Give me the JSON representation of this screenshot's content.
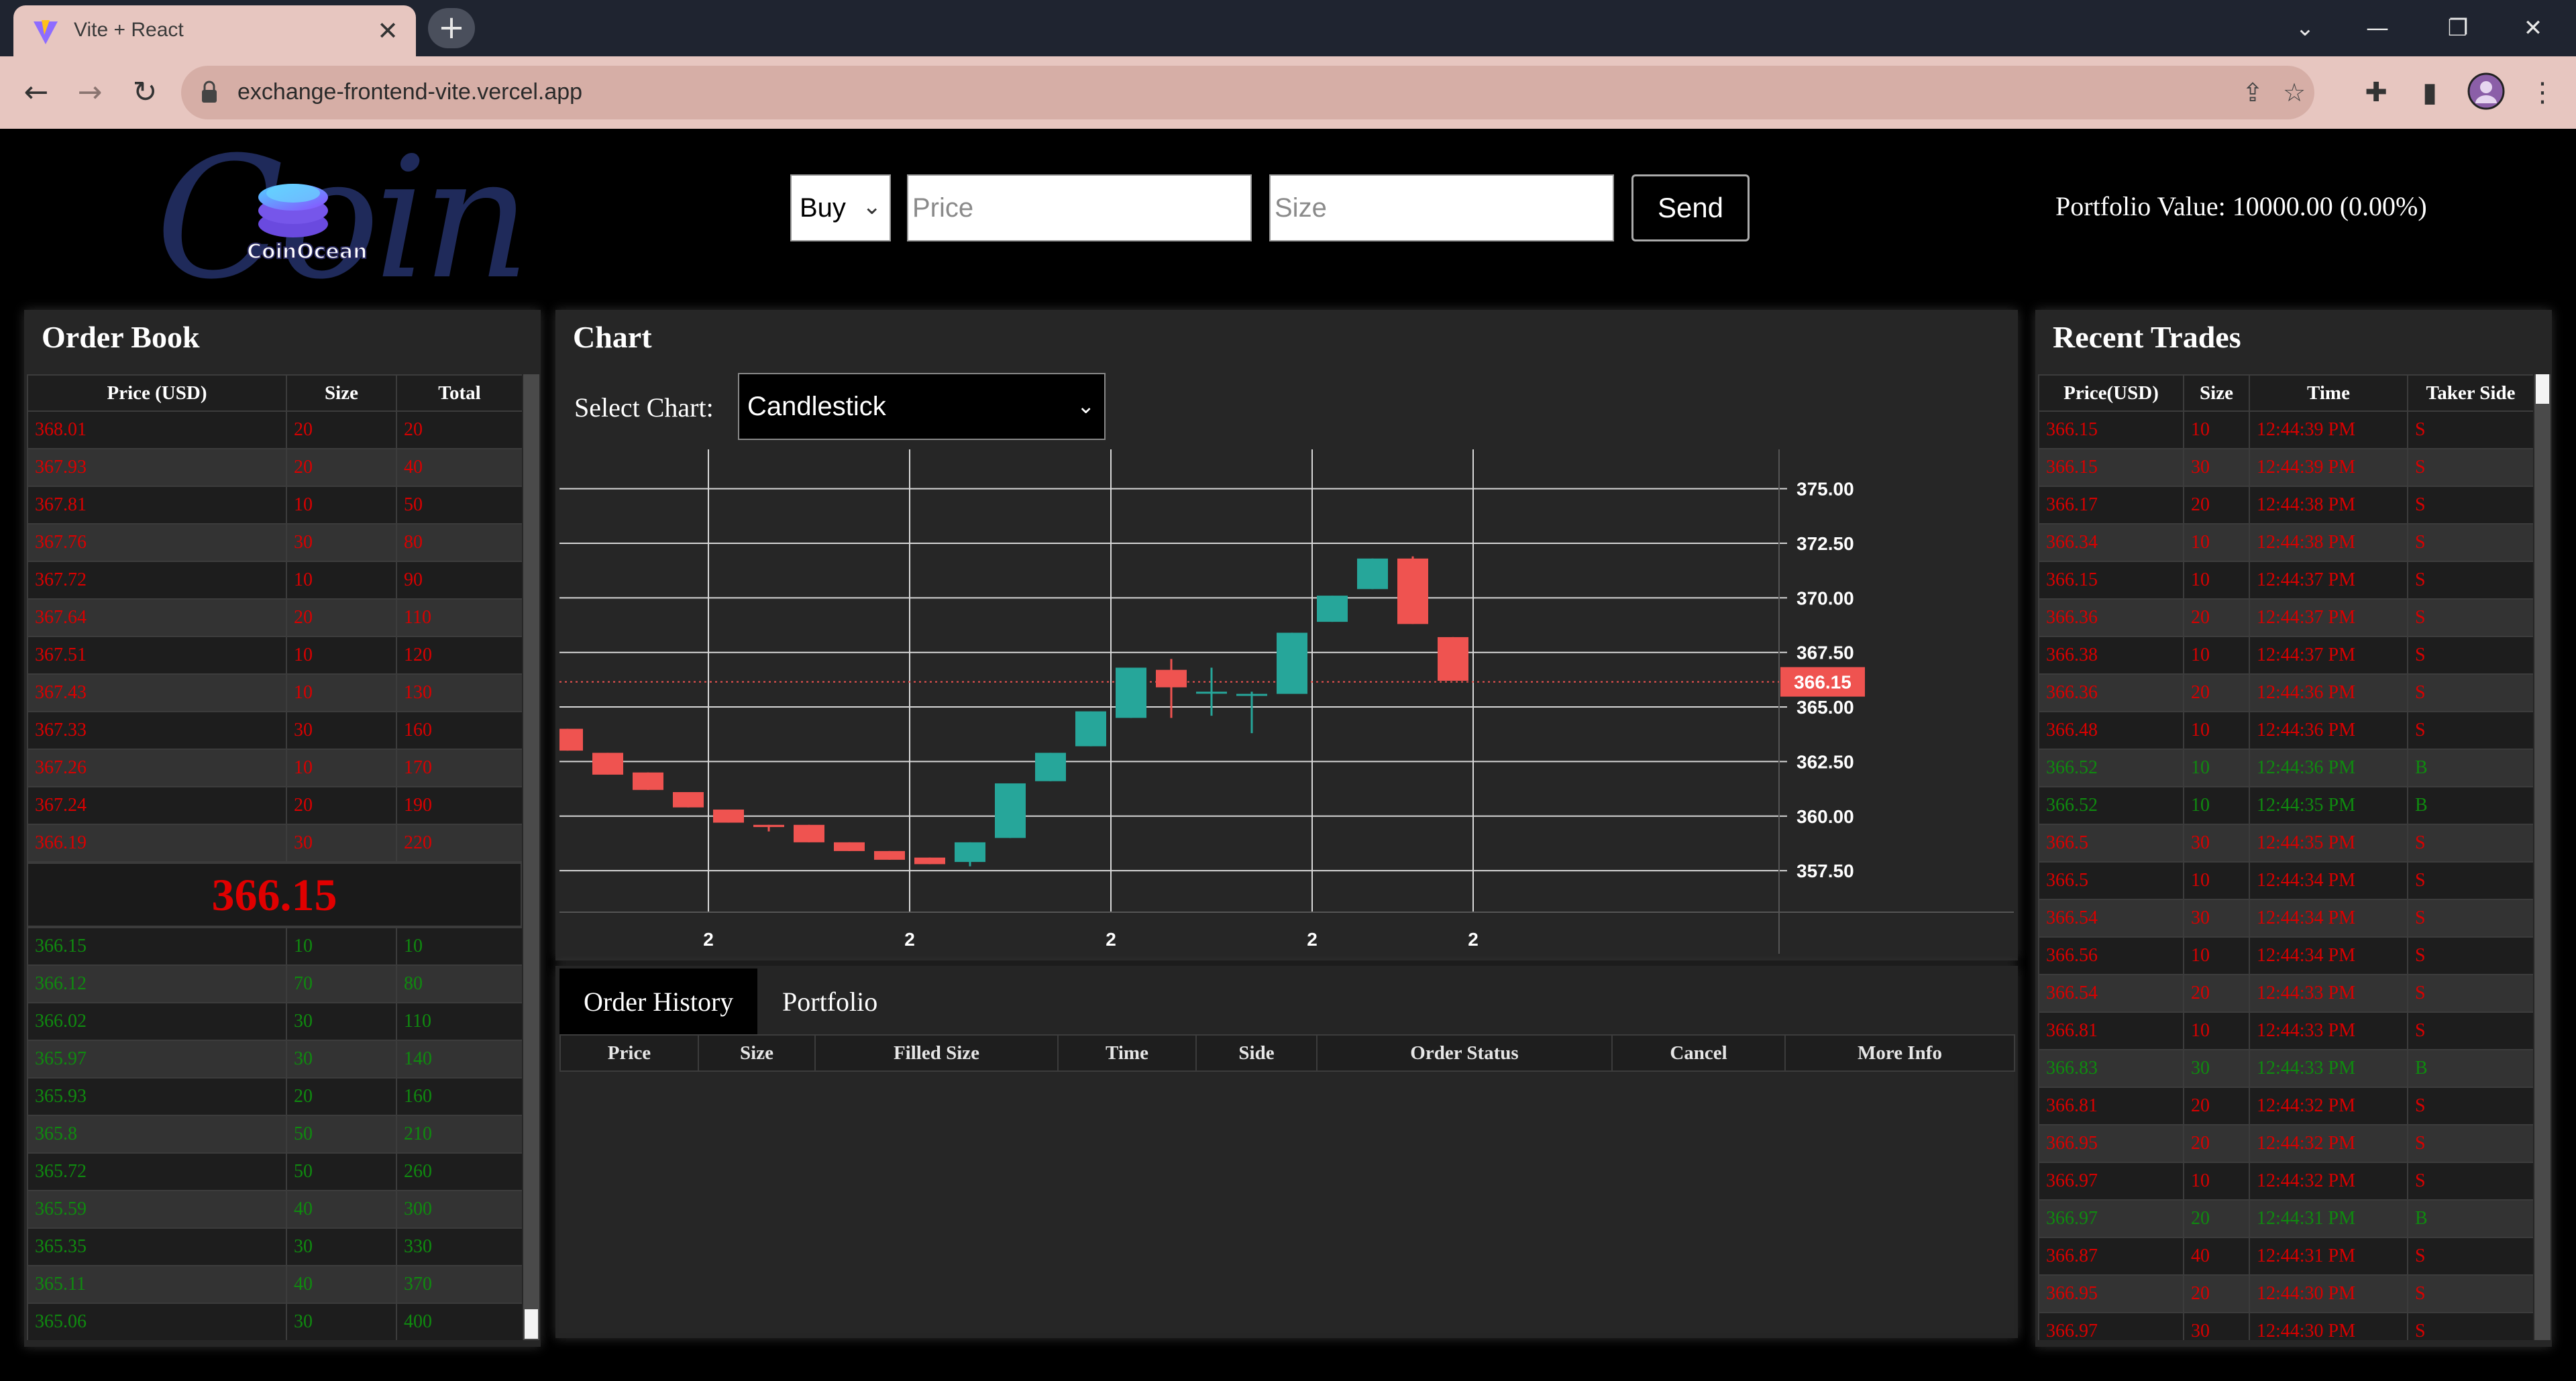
{
  "browser": {
    "tab_title": "Vite + React",
    "tab_close": "✕",
    "new_tab": "+",
    "url": "exchange-frontend-vite.vercel.app",
    "controls": {
      "collapse": "⌄",
      "minimize": "—",
      "restore": "❐",
      "close": "✕"
    },
    "nav": {
      "back": "←",
      "forward": "→",
      "reload": "↻"
    },
    "icons": {
      "share": "⇪",
      "star": "☆",
      "extensions": "✚",
      "sidepanel": "▮",
      "menu": "⋮"
    }
  },
  "header": {
    "logo_script": "Coin",
    "logo_text": "CoinOcean",
    "side_select": "Buy",
    "price_placeholder": "Price",
    "size_placeholder": "Size",
    "send_label": "Send",
    "portfolio_value": "Portfolio Value: 10000.00 (0.00%)"
  },
  "order_book": {
    "title": "Order Book",
    "columns": [
      "Price (USD)",
      "Size",
      "Total"
    ],
    "asks": [
      [
        "368.01",
        "20",
        "20"
      ],
      [
        "367.93",
        "20",
        "40"
      ],
      [
        "367.81",
        "10",
        "50"
      ],
      [
        "367.76",
        "30",
        "80"
      ],
      [
        "367.72",
        "10",
        "90"
      ],
      [
        "367.64",
        "20",
        "110"
      ],
      [
        "367.51",
        "10",
        "120"
      ],
      [
        "367.43",
        "10",
        "130"
      ],
      [
        "367.33",
        "30",
        "160"
      ],
      [
        "367.26",
        "10",
        "170"
      ],
      [
        "367.24",
        "20",
        "190"
      ],
      [
        "366.19",
        "30",
        "220"
      ]
    ],
    "mid_price": "366.15",
    "bids": [
      [
        "366.15",
        "10",
        "10"
      ],
      [
        "366.12",
        "70",
        "80"
      ],
      [
        "366.02",
        "30",
        "110"
      ],
      [
        "365.97",
        "30",
        "140"
      ],
      [
        "365.93",
        "20",
        "160"
      ],
      [
        "365.8",
        "50",
        "210"
      ],
      [
        "365.72",
        "50",
        "260"
      ],
      [
        "365.59",
        "40",
        "300"
      ],
      [
        "365.35",
        "30",
        "330"
      ],
      [
        "365.11",
        "40",
        "370"
      ],
      [
        "365.06",
        "30",
        "400"
      ]
    ]
  },
  "chart": {
    "title": "Chart",
    "select_label": "Select Chart:",
    "select_value": "Candlestick",
    "chart_data": {
      "type": "candlestick",
      "y_ticks": [
        "375.00",
        "372.50",
        "370.00",
        "367.50",
        "365.00",
        "362.50",
        "360.00",
        "357.50"
      ],
      "ylim": [
        355.6,
        376.8
      ],
      "x_tick_labels": [
        "2",
        "2",
        "2",
        "2",
        "2"
      ],
      "last_price": 366.15,
      "last_price_label": "366.15",
      "up_color": "#26a69a",
      "down_color": "#ef5350",
      "candles": [
        {
          "o": 364.0,
          "h": 364.0,
          "c": 363.0,
          "l": 363.0
        },
        {
          "o": 362.9,
          "h": 362.9,
          "c": 361.9,
          "l": 361.9
        },
        {
          "o": 362.0,
          "h": 362.0,
          "c": 361.2,
          "l": 361.2
        },
        {
          "o": 361.1,
          "h": 361.1,
          "c": 360.4,
          "l": 360.4
        },
        {
          "o": 360.3,
          "h": 360.3,
          "c": 359.7,
          "l": 359.7
        },
        {
          "o": 359.6,
          "h": 359.6,
          "c": 359.5,
          "l": 359.3
        },
        {
          "o": 359.6,
          "h": 359.6,
          "c": 358.8,
          "l": 358.8
        },
        {
          "o": 358.8,
          "h": 358.8,
          "c": 358.4,
          "l": 358.4
        },
        {
          "o": 358.4,
          "h": 358.4,
          "c": 358.0,
          "l": 358.0
        },
        {
          "o": 358.1,
          "h": 358.1,
          "c": 357.8,
          "l": 357.8
        },
        {
          "o": 357.9,
          "h": 358.8,
          "c": 358.8,
          "l": 357.7
        },
        {
          "o": 359.0,
          "h": 361.5,
          "c": 361.5,
          "l": 359.0
        },
        {
          "o": 361.6,
          "h": 362.9,
          "c": 362.9,
          "l": 361.6
        },
        {
          "o": 363.2,
          "h": 364.8,
          "c": 364.8,
          "l": 363.2
        },
        {
          "o": 364.5,
          "h": 366.8,
          "c": 366.8,
          "l": 364.5
        },
        {
          "o": 366.7,
          "h": 367.2,
          "c": 365.9,
          "l": 364.5
        },
        {
          "o": 365.7,
          "h": 366.8,
          "c": 365.7,
          "l": 364.6
        },
        {
          "o": 365.6,
          "h": 365.7,
          "c": 365.6,
          "l": 363.8
        },
        {
          "o": 365.6,
          "h": 368.4,
          "c": 368.4,
          "l": 365.6
        },
        {
          "o": 368.9,
          "h": 370.1,
          "c": 370.1,
          "l": 368.9
        },
        {
          "o": 370.4,
          "h": 371.8,
          "c": 371.8,
          "l": 370.4
        },
        {
          "o": 371.8,
          "h": 371.9,
          "c": 368.8,
          "l": 368.8
        },
        {
          "o": 368.2,
          "h": 368.2,
          "c": 366.2,
          "l": 366.2
        }
      ]
    }
  },
  "history": {
    "tabs": [
      "Order History",
      "Portfolio"
    ],
    "columns": [
      "Price",
      "Size",
      "Filled Size",
      "Time",
      "Side",
      "Order Status",
      "Cancel",
      "More Info"
    ]
  },
  "recent_trades": {
    "title": "Recent Trades",
    "columns": [
      "Price(USD)",
      "Size",
      "Time",
      "Taker Side"
    ],
    "rows": [
      [
        "366.15",
        "10",
        "12:44:39 PM",
        "S"
      ],
      [
        "366.15",
        "30",
        "12:44:39 PM",
        "S"
      ],
      [
        "366.17",
        "20",
        "12:44:38 PM",
        "S"
      ],
      [
        "366.34",
        "10",
        "12:44:38 PM",
        "S"
      ],
      [
        "366.15",
        "10",
        "12:44:37 PM",
        "S"
      ],
      [
        "366.36",
        "20",
        "12:44:37 PM",
        "S"
      ],
      [
        "366.38",
        "10",
        "12:44:37 PM",
        "S"
      ],
      [
        "366.36",
        "20",
        "12:44:36 PM",
        "S"
      ],
      [
        "366.48",
        "10",
        "12:44:36 PM",
        "S"
      ],
      [
        "366.52",
        "10",
        "12:44:36 PM",
        "B"
      ],
      [
        "366.52",
        "10",
        "12:44:35 PM",
        "B"
      ],
      [
        "366.5",
        "30",
        "12:44:35 PM",
        "S"
      ],
      [
        "366.5",
        "10",
        "12:44:34 PM",
        "S"
      ],
      [
        "366.54",
        "30",
        "12:44:34 PM",
        "S"
      ],
      [
        "366.56",
        "10",
        "12:44:34 PM",
        "S"
      ],
      [
        "366.54",
        "20",
        "12:44:33 PM",
        "S"
      ],
      [
        "366.81",
        "10",
        "12:44:33 PM",
        "S"
      ],
      [
        "366.83",
        "30",
        "12:44:33 PM",
        "B"
      ],
      [
        "366.81",
        "20",
        "12:44:32 PM",
        "S"
      ],
      [
        "366.95",
        "20",
        "12:44:32 PM",
        "S"
      ],
      [
        "366.97",
        "10",
        "12:44:32 PM",
        "S"
      ],
      [
        "366.97",
        "20",
        "12:44:31 PM",
        "B"
      ],
      [
        "366.87",
        "40",
        "12:44:31 PM",
        "S"
      ],
      [
        "366.95",
        "20",
        "12:44:30 PM",
        "S"
      ],
      [
        "366.97",
        "30",
        "12:44:30 PM",
        "S"
      ]
    ]
  }
}
